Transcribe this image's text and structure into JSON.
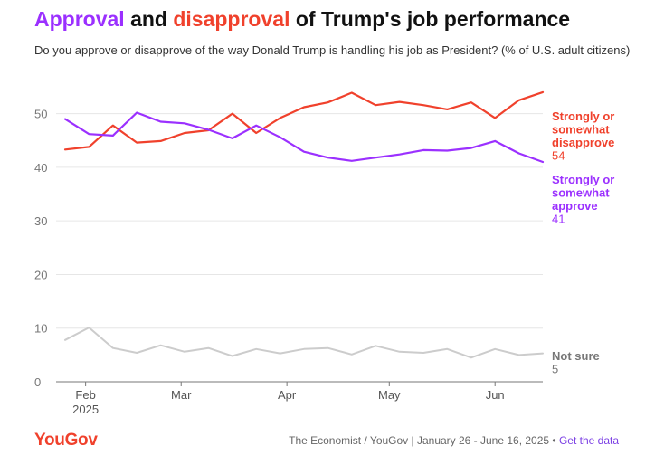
{
  "header": {
    "title_part1": "Approval",
    "title_part2": " and ",
    "title_part3": "disapproval",
    "title_part4": " of Trump's job performance",
    "subtitle": "Do you approve or disapprove of the way Donald Trump is handling his job as President? (% of U.S. adult citizens)"
  },
  "colors": {
    "approve": "#9b30ff",
    "disapprove": "#f0412c",
    "not_sure": "#cccccc",
    "not_sure_label": "#777777",
    "logo": "#f0412c",
    "link": "#7b3fe4"
  },
  "chart_data": {
    "type": "line",
    "x": [
      "2025-01-26",
      "2025-02-02",
      "2025-02-09",
      "2025-02-16",
      "2025-02-23",
      "2025-03-02",
      "2025-03-09",
      "2025-03-16",
      "2025-03-23",
      "2025-03-30",
      "2025-04-06",
      "2025-04-13",
      "2025-04-20",
      "2025-04-27",
      "2025-05-04",
      "2025-05-11",
      "2025-05-18",
      "2025-05-25",
      "2025-06-01",
      "2025-06-08",
      "2025-06-15"
    ],
    "x_ticks": [
      {
        "date": "2025-02-01",
        "label": "Feb",
        "sublabel": "2025"
      },
      {
        "date": "2025-03-01",
        "label": "Mar",
        "sublabel": ""
      },
      {
        "date": "2025-04-01",
        "label": "Apr",
        "sublabel": ""
      },
      {
        "date": "2025-05-01",
        "label": "May",
        "sublabel": ""
      },
      {
        "date": "2025-06-01",
        "label": "Jun",
        "sublabel": ""
      }
    ],
    "y_ticks": [
      0,
      10,
      20,
      30,
      40,
      50
    ],
    "ylim": [
      0,
      55
    ],
    "grid": true,
    "legend": "end-labels-right",
    "series": [
      {
        "key": "disapprove",
        "label_lines": [
          "Strongly or",
          "somewhat",
          "disapprove"
        ],
        "end_value": "54",
        "values": [
          43.3,
          43.8,
          47.8,
          44.6,
          44.9,
          46.4,
          46.9,
          50.0,
          46.4,
          49.2,
          51.2,
          52.1,
          53.9,
          51.6,
          52.2,
          51.6,
          50.8,
          52.1,
          49.2,
          52.5,
          54.0
        ]
      },
      {
        "key": "approve",
        "label_lines": [
          "Strongly or",
          "somewhat",
          "approve"
        ],
        "end_value": "41",
        "values": [
          49.0,
          46.2,
          45.9,
          50.2,
          48.5,
          48.2,
          47.0,
          45.4,
          47.8,
          45.6,
          42.9,
          41.8,
          41.2,
          41.8,
          42.4,
          43.2,
          43.1,
          43.6,
          44.9,
          42.6,
          41.0
        ]
      },
      {
        "key": "not_sure",
        "label_lines": [
          "Not sure"
        ],
        "end_value": "5",
        "values": [
          7.8,
          10.1,
          6.3,
          5.4,
          6.8,
          5.6,
          6.3,
          4.8,
          6.1,
          5.3,
          6.1,
          6.3,
          5.1,
          6.7,
          5.6,
          5.4,
          6.1,
          4.5,
          6.1,
          5.0,
          5.3
        ]
      }
    ]
  },
  "footer": {
    "logo": "YouGov",
    "source": "The Economist / YouGov | January 26 - June 16, 2025 • ",
    "link": "Get the data"
  }
}
